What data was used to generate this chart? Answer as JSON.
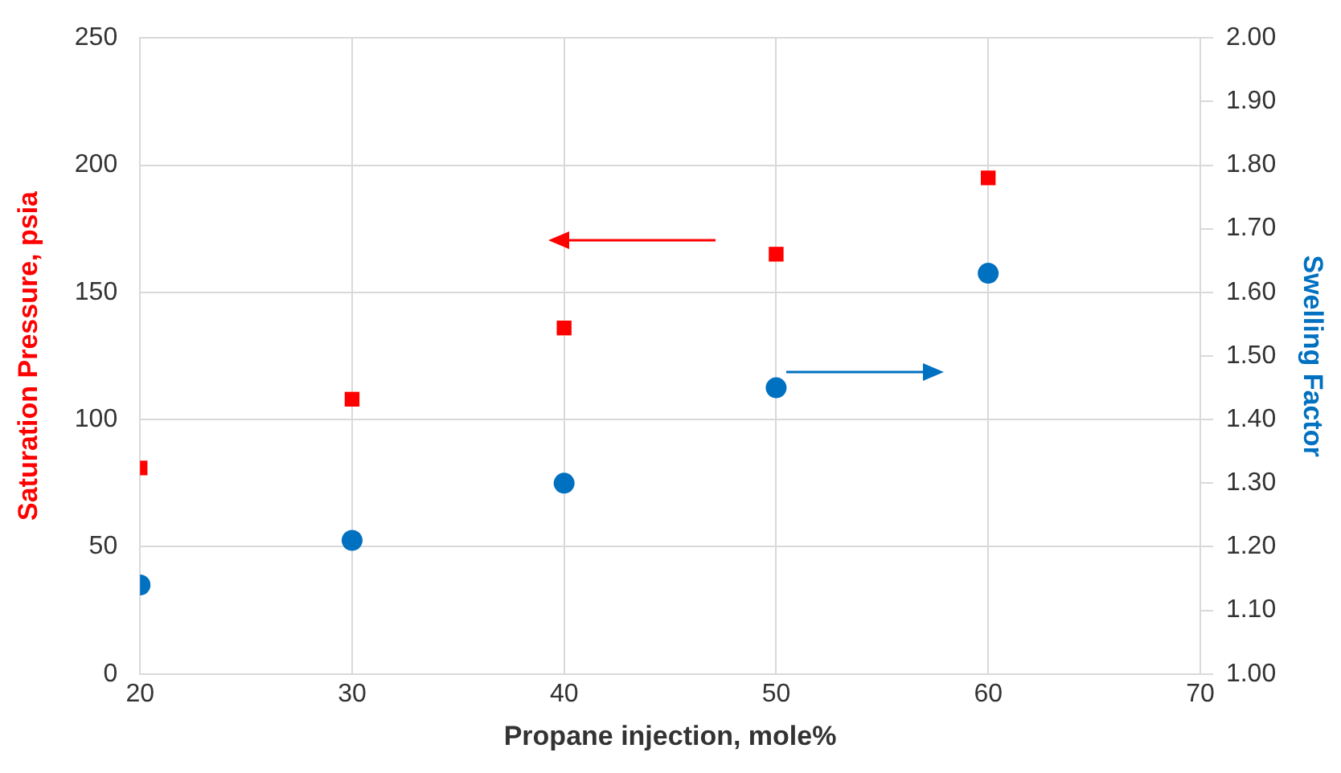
{
  "chart_data": {
    "type": "scatter",
    "xlabel": "Propane injection, mole%",
    "ylabel": "Saturation Pressure, psia",
    "y2label": "Swelling Factor",
    "x": [
      20,
      30,
      40,
      50,
      60
    ],
    "series": [
      {
        "color": "#ff0000",
        "marker": "square",
        "values": [
          81,
          108,
          136,
          165,
          195
        ]
      },
      {
        "color": "#0070c0",
        "marker": "circle",
        "axis": "y2",
        "values": [
          1.14,
          1.21,
          1.3,
          1.45,
          1.63
        ]
      }
    ],
    "xlim": [
      20,
      70
    ],
    "xticks": [
      20,
      30,
      40,
      50,
      60,
      70
    ],
    "ylim": [
      0,
      250
    ],
    "yticks": [
      0,
      50,
      100,
      150,
      200,
      250
    ],
    "y2lim": [
      1,
      2
    ],
    "y2ticks": [
      {
        "value": 1,
        "label": "1.00"
      },
      {
        "value": 1.1,
        "label": "1.10"
      },
      {
        "value": 1.2,
        "label": "1.20"
      },
      {
        "value": 1.3,
        "label": "1.30"
      },
      {
        "value": 1.4,
        "label": "1.40"
      },
      {
        "value": 1.5,
        "label": "1.50"
      },
      {
        "value": 1.6,
        "label": "1.60"
      },
      {
        "value": 1.7,
        "label": "1.70"
      },
      {
        "value": 1.8,
        "label": "1.80"
      },
      {
        "value": 1.9,
        "label": "1.90"
      },
      {
        "value": 2,
        "label": "2.00"
      }
    ],
    "grid": true
  }
}
